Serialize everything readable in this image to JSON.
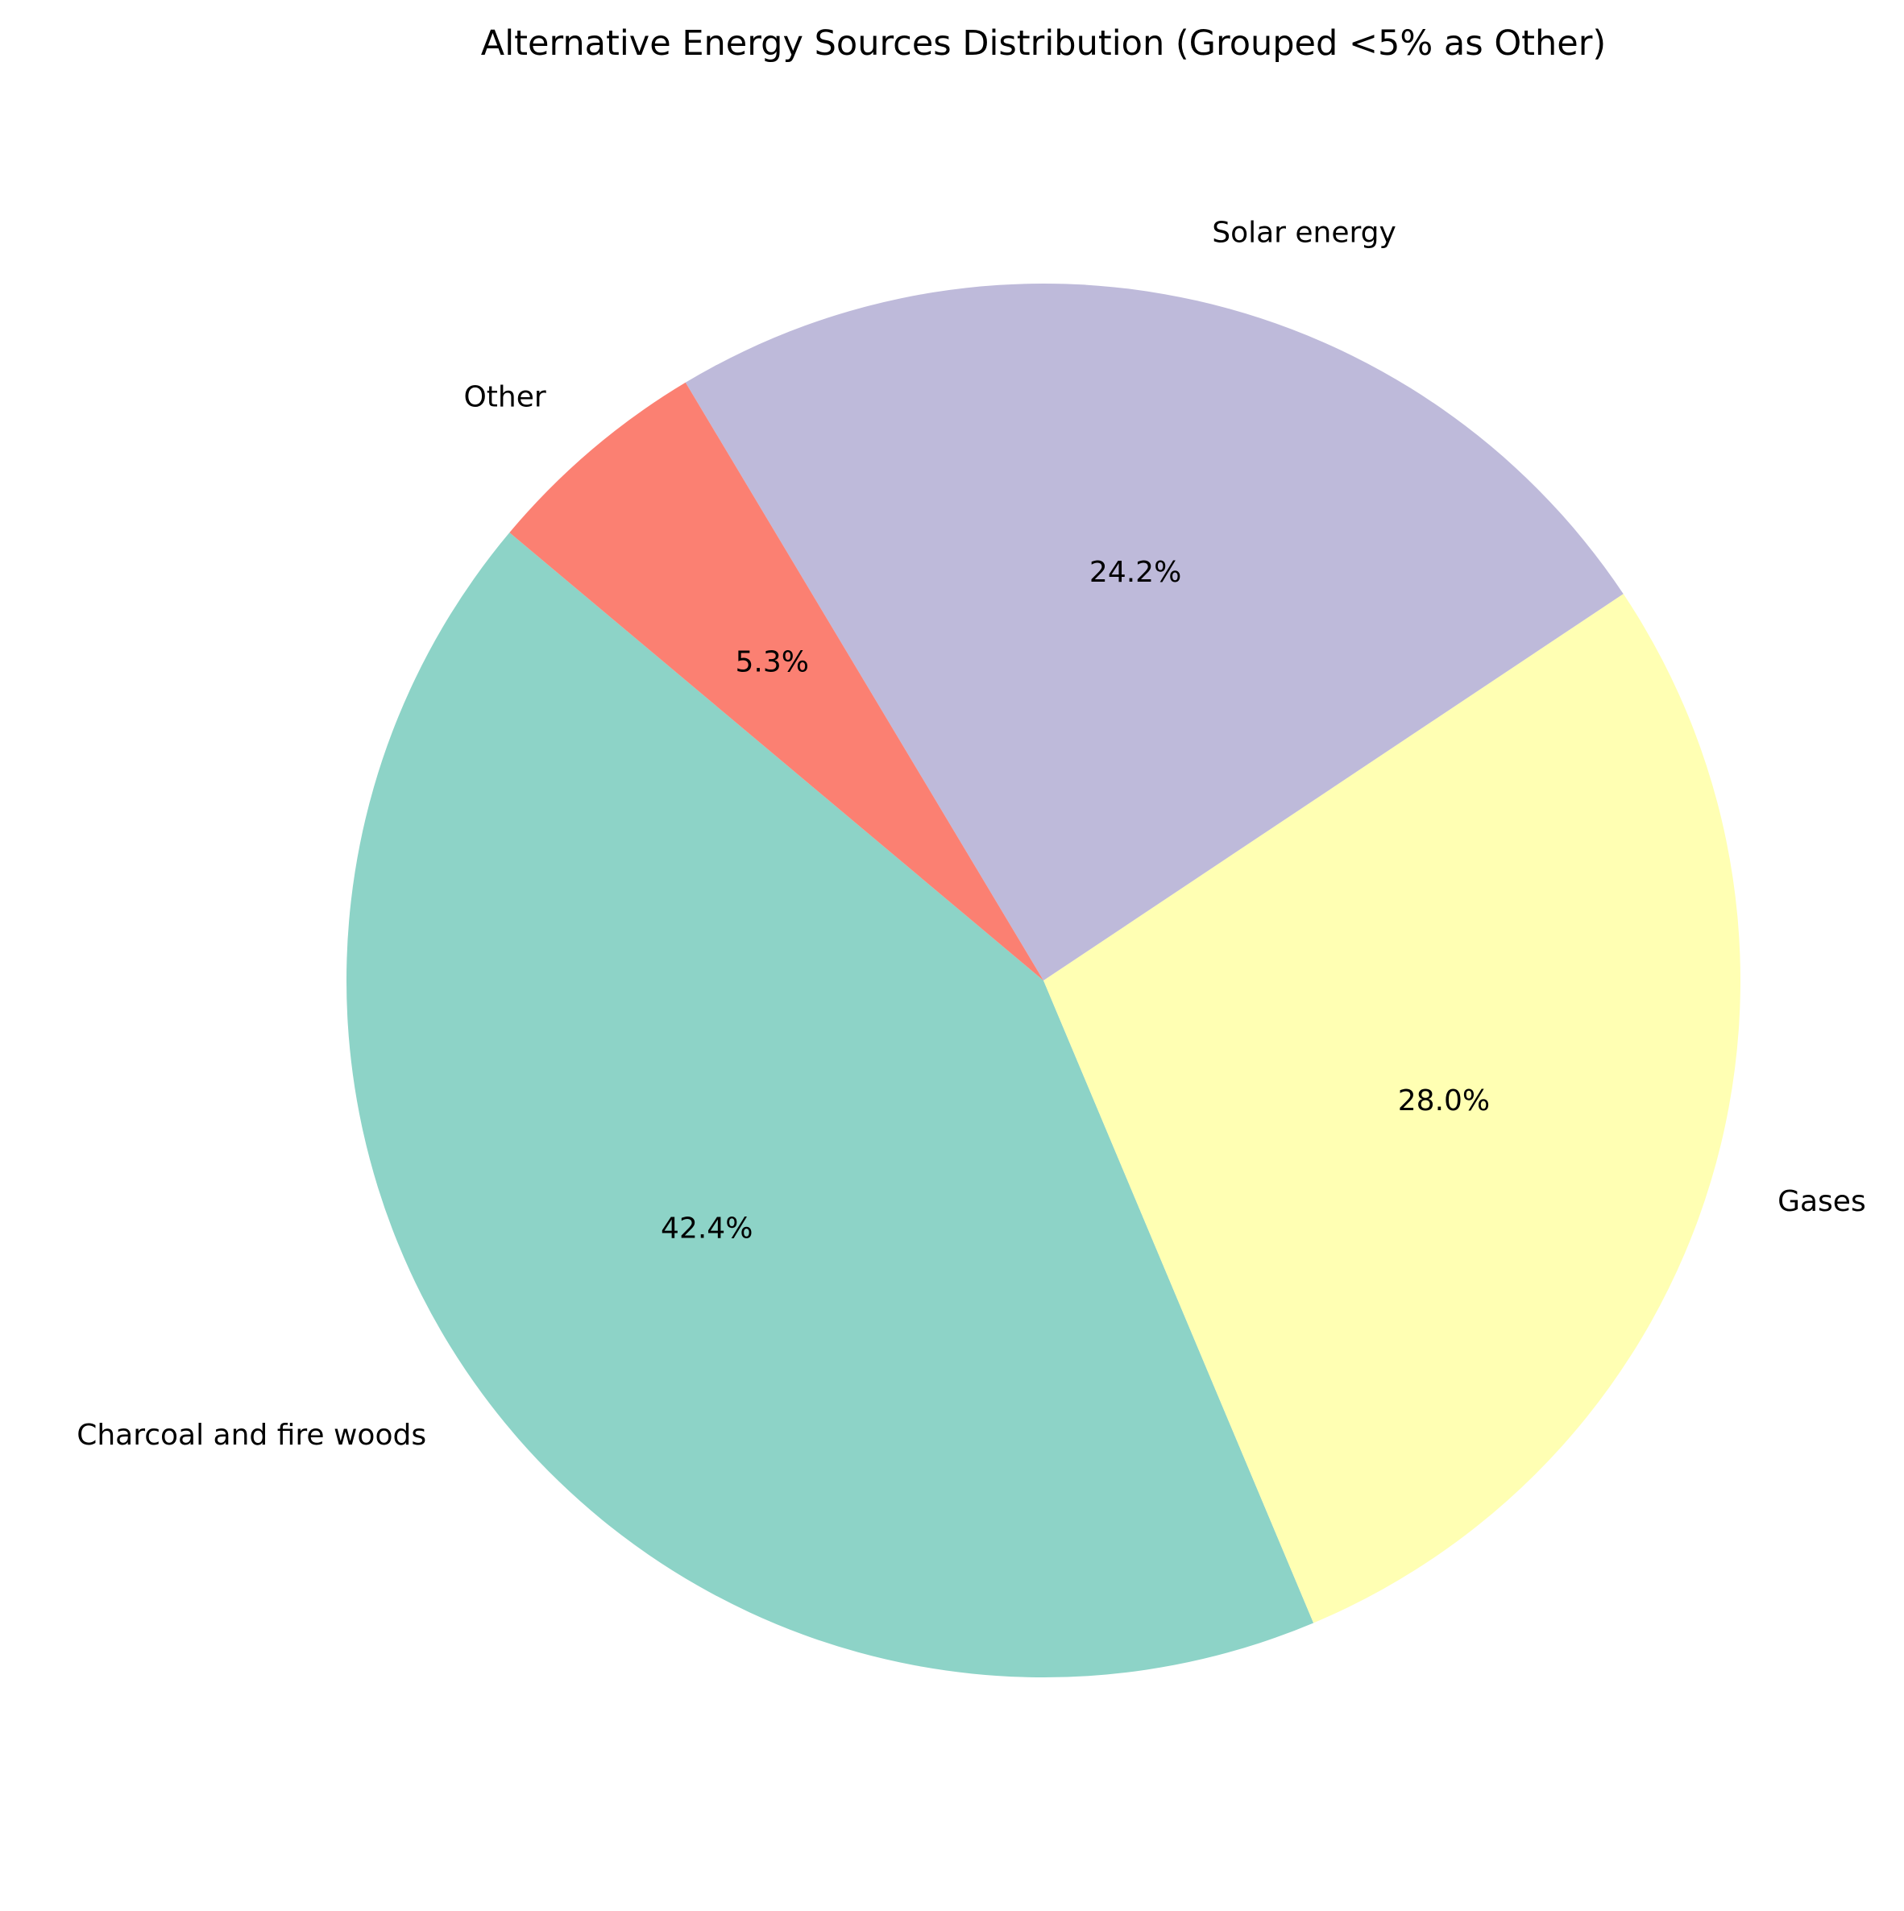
{
  "chart_data": {
    "type": "pie",
    "title": "Alternative Energy Sources Distribution (Grouped <5% as Other)",
    "start_angle_deg": 140,
    "direction": "counterclockwise",
    "slices": [
      {
        "label": "Charcoal and fire woods",
        "value": 42.4,
        "pct_label": "42.4%",
        "color": "#8dd3c7"
      },
      {
        "label": "Gases",
        "value": 28.0,
        "pct_label": "28.0%",
        "color": "#ffffb3"
      },
      {
        "label": "Solar energy",
        "value": 24.2,
        "pct_label": "24.2%",
        "color": "#bebada"
      },
      {
        "label": "Other",
        "value": 5.3,
        "pct_label": "5.3%",
        "color": "#fb8072"
      }
    ]
  }
}
